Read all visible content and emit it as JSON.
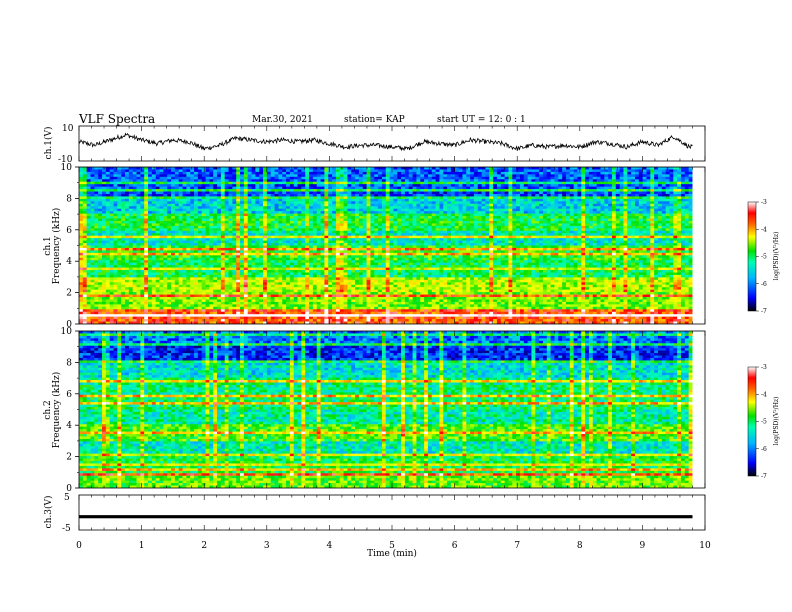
{
  "header": {
    "title": "VLF Spectra",
    "date": "Mar.30, 2021",
    "station": "station= KAP",
    "start": "start  UT =   12: 0  : 1"
  },
  "colors": {
    "colormap": [
      "#00007a",
      "#0000ff",
      "#00b4ff",
      "#00ffb0",
      "#00e000",
      "#a8ff00",
      "#ffff00",
      "#ff8c00",
      "#ff0000",
      "#ffffff"
    ]
  },
  "chart_data": [
    {
      "type": "line",
      "panel": "ch1-waveform",
      "ylabel": "ch.1(V)",
      "ylim": [
        -10,
        10
      ],
      "yticks": [
        "10",
        "-10"
      ],
      "xlim": [
        0,
        10
      ],
      "series": [
        {
          "x": [
            0,
            0.25,
            0.5,
            0.75,
            1.0,
            1.25,
            1.5,
            1.75,
            2.0,
            2.25,
            2.5,
            2.75,
            3.0,
            3.25,
            3.5,
            3.75,
            4.0,
            4.25,
            4.5,
            4.75,
            5.0,
            5.25,
            5.5,
            5.75,
            6.0,
            6.25,
            6.5,
            6.75,
            7.0,
            7.25,
            7.5,
            7.75,
            8.0,
            8.25,
            8.5,
            8.75,
            9.0,
            9.25,
            9.5,
            9.75
          ],
          "values": [
            1,
            -1,
            2,
            5,
            2,
            0,
            2,
            1,
            -3,
            -1,
            3,
            2,
            1,
            2,
            1,
            2,
            0,
            -2,
            -1,
            -1,
            -2,
            -3,
            1,
            0,
            -1,
            2,
            1,
            0,
            -3,
            -1,
            -2,
            -1,
            -2,
            1,
            0,
            -2,
            1,
            -1,
            4,
            -2
          ]
        }
      ]
    },
    {
      "type": "heatmap",
      "panel": "ch1-spectrogram",
      "ylabel": "ch.1",
      "ylabel2": "Frequency (kHz)",
      "ylim": [
        0,
        10
      ],
      "xlim": [
        0,
        10
      ],
      "yticks": [
        "0",
        "2",
        "4",
        "6",
        "8",
        "10"
      ],
      "frequency_kHz": [
        9.5,
        8.5,
        7.5,
        6.5,
        5.5,
        4.5,
        3.5,
        2.5,
        1.5,
        0.5
      ],
      "log_psd": [
        -6.3,
        -6.4,
        -5.8,
        -5.2,
        -5.6,
        -5.1,
        -5.3,
        -4.6,
        -4.8,
        -3.6
      ],
      "colorbar": {
        "label": "log(PSD)(V²/Hz)",
        "range": [
          -7,
          -3
        ],
        "ticks": [
          "-3",
          "-4",
          "-5",
          "-6",
          "-7"
        ]
      }
    },
    {
      "type": "heatmap",
      "panel": "ch2-spectrogram",
      "ylabel": "ch.2",
      "ylabel2": "Frequency (kHz)",
      "ylim": [
        0,
        10
      ],
      "xlim": [
        0,
        10
      ],
      "yticks": [
        "0",
        "2",
        "4",
        "6",
        "8",
        "10"
      ],
      "frequency_kHz": [
        9.5,
        8.5,
        7.5,
        6.5,
        5.5,
        4.5,
        3.5,
        2.5,
        1.5,
        0.5
      ],
      "log_psd": [
        -6.2,
        -6.5,
        -5.7,
        -5.4,
        -5.3,
        -5.5,
        -5.0,
        -5.6,
        -5.2,
        -4.9
      ],
      "colorbar": {
        "label": "log(PSD)(V²/Hz)",
        "range": [
          -7,
          -3
        ],
        "ticks": [
          "-3",
          "-4",
          "-5",
          "-6",
          "-7"
        ]
      }
    },
    {
      "type": "line",
      "panel": "ch3-waveform",
      "ylabel": "ch.3(V)",
      "ylim": [
        -5,
        5
      ],
      "yticks": [
        "5",
        "-5"
      ],
      "xlim": [
        0,
        10
      ],
      "series": [
        {
          "x": [
            0,
            9.8
          ],
          "values": [
            -1.2,
            -1.2
          ],
          "amplitude": 0.45
        }
      ]
    }
  ],
  "xaxis": {
    "label": "Time (min)",
    "ticks": [
      "0",
      "1",
      "2",
      "3",
      "4",
      "5",
      "6",
      "7",
      "8",
      "9",
      "10"
    ],
    "data_end": 9.8
  }
}
